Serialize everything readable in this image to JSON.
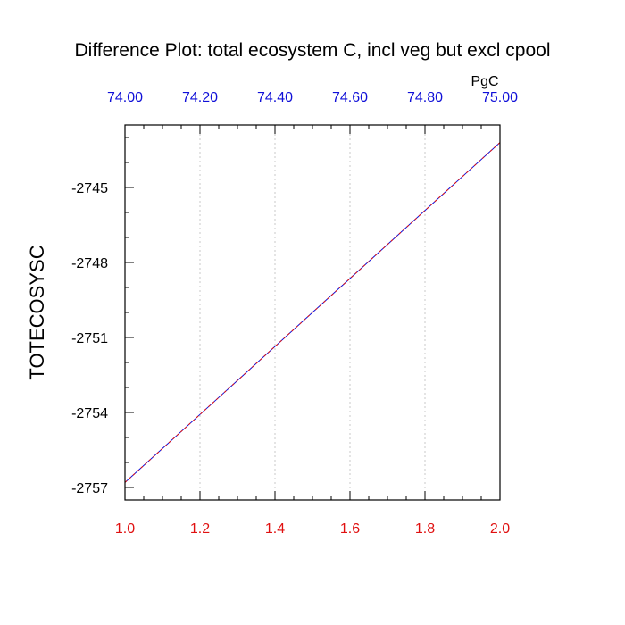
{
  "chart_data": {
    "type": "line",
    "title": "Difference Plot: total ecosystem C, incl veg but excl cpool",
    "ylabel": "TOTECOSYSC",
    "top_axis_unit": "PgC",
    "xlim": [
      1.0,
      2.0
    ],
    "ylim": [
      -2757.5,
      -2742.5
    ],
    "bottom_axis": {
      "ticks": [
        1.0,
        1.2,
        1.4,
        1.6,
        1.8,
        2.0
      ],
      "labels": [
        "1.0",
        "1.2",
        "1.4",
        "1.6",
        "1.8",
        "2.0"
      ],
      "color": "#e01010"
    },
    "top_axis": {
      "ticks": [
        74.0,
        74.2,
        74.4,
        74.6,
        74.8,
        75.0
      ],
      "labels": [
        "74.00",
        "74.20",
        "74.40",
        "74.60",
        "74.80",
        "75.00"
      ],
      "color": "#1010d8"
    },
    "y_axis": {
      "ticks": [
        -2757,
        -2754,
        -2751,
        -2748,
        -2745
      ],
      "labels": [
        "-2757",
        "-2754",
        "-2751",
        "-2748",
        "-2745"
      ]
    },
    "grid": "vertical dotted",
    "series": [
      {
        "x": [
          1.0,
          2.0
        ],
        "y": [
          -2756.8,
          -2743.2
        ],
        "color": "#1010d8"
      },
      {
        "x": [
          1.0,
          2.0
        ],
        "y": [
          -2756.8,
          -2743.2
        ],
        "color": "#e01010",
        "dash": true
      }
    ]
  }
}
